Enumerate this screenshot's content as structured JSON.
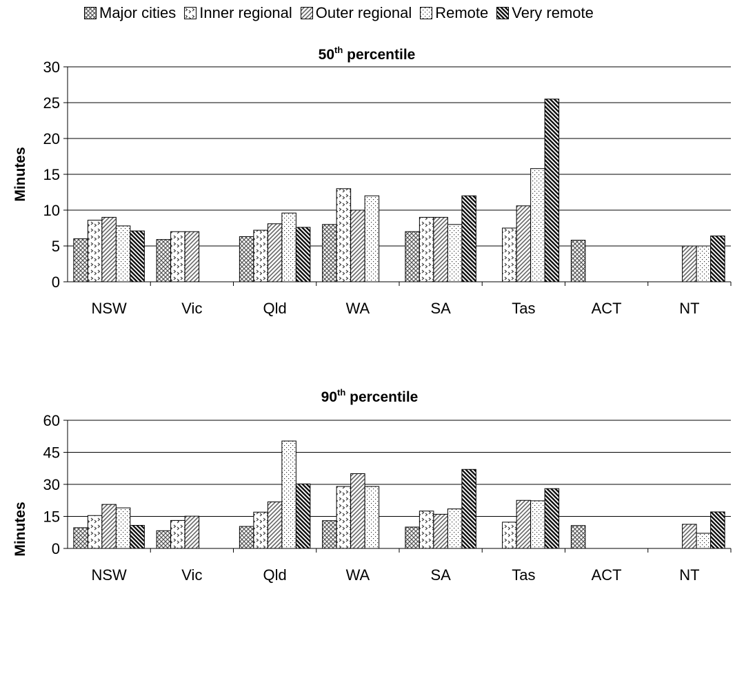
{
  "legend": [
    {
      "label": "Major cities",
      "pattern": "crosshatch"
    },
    {
      "label": "Inner regional",
      "pattern": "chevron"
    },
    {
      "label": "Outer regional",
      "pattern": "diagonal"
    },
    {
      "label": "Remote",
      "pattern": "dots"
    },
    {
      "label": "Very remote",
      "pattern": "dark-diagonal"
    }
  ],
  "colors": {
    "bar_fill": "#ffffff",
    "bar_pattern": "#555555",
    "dark_bar": "#222222",
    "axis": "#000000",
    "grid": "#000000"
  },
  "chart_data": [
    {
      "type": "bar",
      "title": "50th percentile",
      "title_main": "50",
      "title_sup": "th",
      "title_rest": " percentile",
      "ylabel": "Minutes",
      "ylim": [
        0,
        30
      ],
      "yticks": [
        0,
        5,
        10,
        15,
        20,
        25,
        30
      ],
      "grid": true,
      "legend_position": "top",
      "categories": [
        "NSW",
        "Vic",
        "Qld",
        "WA",
        "SA",
        "Tas",
        "ACT",
        "NT"
      ],
      "series": [
        {
          "name": "Major cities",
          "values": [
            6.0,
            5.9,
            6.3,
            8.0,
            7.0,
            null,
            5.8,
            null
          ]
        },
        {
          "name": "Inner regional",
          "values": [
            8.6,
            7.0,
            7.2,
            13.0,
            9.0,
            7.5,
            null,
            null
          ]
        },
        {
          "name": "Outer regional",
          "values": [
            9.0,
            7.0,
            8.1,
            10.0,
            9.0,
            10.6,
            null,
            5.0
          ]
        },
        {
          "name": "Remote",
          "values": [
            7.8,
            null,
            9.6,
            12.0,
            8.0,
            15.8,
            null,
            5.0
          ]
        },
        {
          "name": "Very remote",
          "values": [
            7.1,
            null,
            7.6,
            null,
            12.0,
            25.5,
            null,
            6.4
          ]
        }
      ]
    },
    {
      "type": "bar",
      "title": "90th percentile",
      "title_main": "90",
      "title_sup": "th",
      "title_rest": " percentile",
      "ylabel": "Minutes",
      "ylim": [
        0,
        60
      ],
      "yticks": [
        0,
        15,
        30,
        45,
        60
      ],
      "grid": true,
      "categories": [
        "NSW",
        "Vic",
        "Qld",
        "WA",
        "SA",
        "Tas",
        "ACT",
        "NT"
      ],
      "series": [
        {
          "name": "Major cities",
          "values": [
            9.7,
            8.3,
            10.3,
            13.0,
            10.0,
            null,
            10.7,
            null
          ]
        },
        {
          "name": "Inner regional",
          "values": [
            15.4,
            13.1,
            17.0,
            29.0,
            17.5,
            12.3,
            null,
            null
          ]
        },
        {
          "name": "Outer regional",
          "values": [
            20.6,
            15.1,
            21.8,
            35.0,
            16.0,
            22.5,
            null,
            11.3
          ]
        },
        {
          "name": "Remote",
          "values": [
            19.0,
            null,
            50.3,
            29.0,
            18.5,
            22.3,
            null,
            7.1
          ]
        },
        {
          "name": "Very remote",
          "values": [
            10.8,
            null,
            30.2,
            null,
            37.0,
            28.0,
            null,
            17.1
          ]
        }
      ]
    }
  ]
}
